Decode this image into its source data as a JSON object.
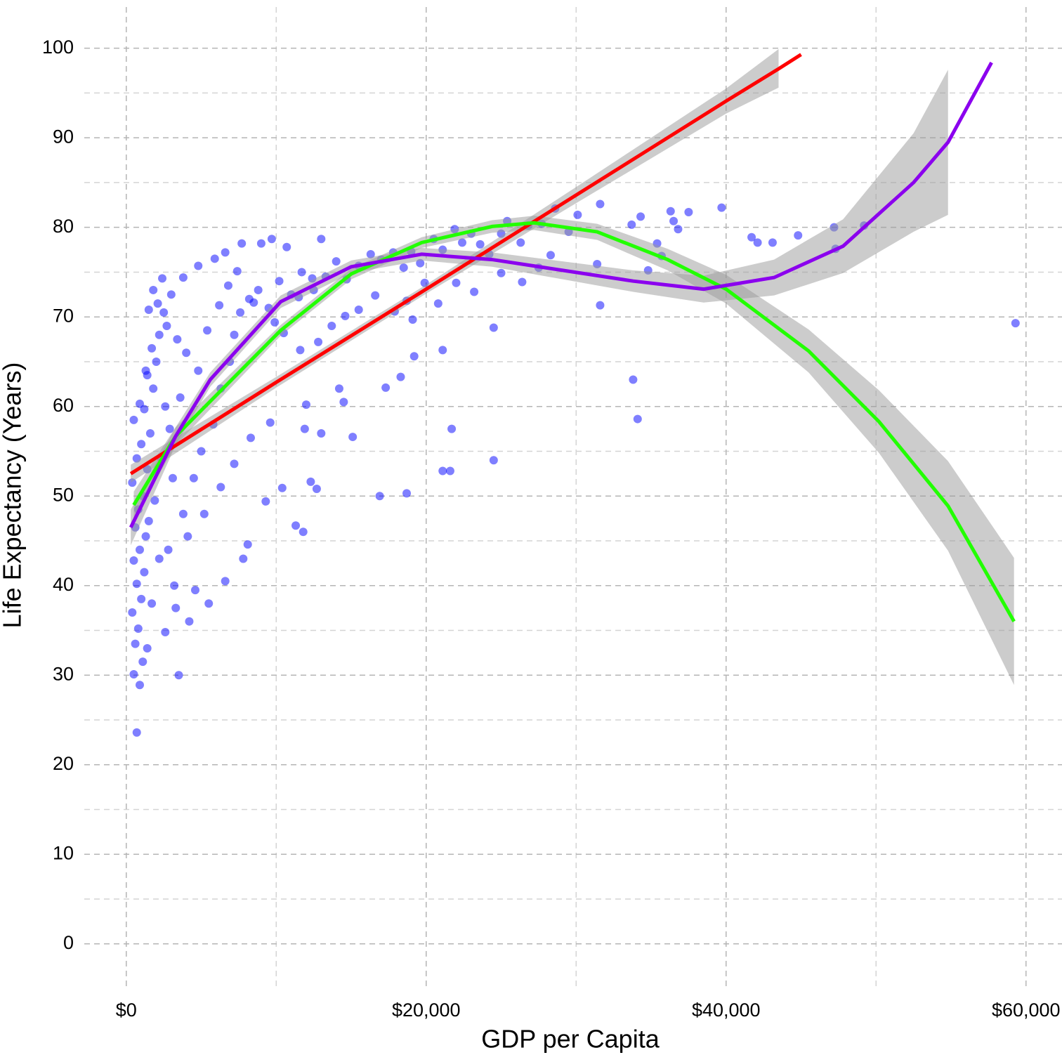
{
  "chart_data": {
    "type": "scatter",
    "x_label": "GDP per Capita",
    "y_label": "Life Expectancy (Years)",
    "xlim": [
      -2800,
      62400
    ],
    "ylim": [
      -4.8,
      104.6
    ],
    "xticks": [
      {
        "value": 0,
        "label": "$0"
      },
      {
        "value": 20000,
        "label": "$20,000"
      },
      {
        "value": 40000,
        "label": "$40,000"
      },
      {
        "value": 60000,
        "label": "$60,000"
      }
    ],
    "yticks": [
      0,
      10,
      20,
      30,
      40,
      50,
      60,
      70,
      80,
      90,
      100
    ],
    "x_minor_ticks": [
      10000,
      30000,
      50000
    ],
    "y_minor_ticks": [
      5,
      15,
      25,
      35,
      45,
      55,
      65,
      75,
      85,
      95
    ],
    "grid": true,
    "points": {
      "color": "#0000ff",
      "x": [
        700,
        900,
        500,
        1100,
        600,
        800,
        400,
        1000,
        700,
        1200,
        500,
        900,
        1300,
        600,
        1500,
        800,
        1100,
        400,
        1400,
        700,
        1000,
        1600,
        500,
        1200,
        900,
        1800,
        1400,
        2000,
        1700,
        2200,
        2500,
        3000,
        2800,
        3200,
        3500,
        2600,
        3300,
        4200,
        4600,
        6600,
        7800,
        8100,
        5500,
        3800,
        4500,
        5000,
        5800,
        6300,
        6900,
        7200,
        7600,
        8200,
        8800,
        9500,
        10200,
        11000,
        11700,
        12500,
        13300,
        9300,
        10400,
        11800,
        11300,
        12300,
        12700,
        11900,
        13000,
        12000,
        14200,
        14500,
        15100,
        16900,
        18700,
        18300,
        17300,
        19200,
        21100,
        21700,
        21100,
        21600,
        24500,
        24500,
        33800,
        34100,
        59300,
        49200,
        47200,
        47300,
        43100,
        44800,
        41700,
        42100,
        39700,
        37500,
        36300,
        36500,
        36800,
        35400,
        35700,
        34800,
        34300,
        33700,
        31600,
        30100,
        29500,
        28600,
        27700,
        26800,
        26300,
        25400,
        25000,
        24200,
        23600,
        23000,
        22400,
        21900,
        21100,
        20500,
        19600,
        19000,
        18500,
        17800,
        17000,
        16300,
        15500,
        14700,
        14000,
        13000,
        12400,
        11500,
        10700,
        9700,
        9000,
        7700,
        6600,
        5900,
        4800,
        3800,
        2400,
        1800,
        1500,
        2100,
        2700,
        3400,
        4000,
        4800,
        5400,
        6200,
        6800,
        7400,
        8500,
        9900,
        31600,
        31400,
        28300,
        27500,
        26400,
        25000,
        23200,
        22000,
        20800,
        19900,
        18700,
        17900,
        16600,
        15500,
        14600,
        13700,
        12800,
        11600,
        10500,
        3600,
        2900,
        2300,
        1900,
        3100,
        4100,
        5200,
        6300,
        7200,
        8300,
        9600,
        19100,
        2600,
        1300,
        1700,
        2200,
        1400
      ],
      "values": [
        23.6,
        28.9,
        30.1,
        31.5,
        33.5,
        35.2,
        37,
        38.5,
        40.2,
        41.5,
        42.8,
        44,
        45.5,
        46.5,
        47.2,
        48.5,
        50,
        51.5,
        53,
        54.2,
        55.8,
        57,
        58.5,
        59.7,
        60.3,
        62,
        63.5,
        65,
        66.5,
        68,
        70.5,
        72.5,
        44,
        40,
        30,
        34.8,
        37.5,
        36,
        39.5,
        40.5,
        43,
        44.6,
        38,
        48,
        52,
        55,
        58,
        62,
        65,
        68,
        70.5,
        72,
        73,
        71,
        74,
        72.5,
        75,
        73,
        74.5,
        49.4,
        50.9,
        46,
        46.7,
        51.6,
        50.8,
        57.5,
        57,
        60.2,
        62,
        60.5,
        56.6,
        50,
        50.3,
        63.3,
        62.1,
        65.6,
        66.3,
        57.5,
        52.8,
        52.8,
        54,
        68.8,
        63,
        58.6,
        69.3,
        80.2,
        80,
        77.6,
        78.3,
        79.1,
        78.9,
        78.3,
        82.2,
        81.7,
        81.8,
        80.7,
        79.8,
        78.2,
        76.8,
        75.2,
        81.2,
        80.3,
        82.6,
        81.4,
        79.5,
        82.1,
        80.4,
        80.2,
        78.3,
        80.7,
        79.3,
        77,
        78.1,
        79.3,
        78.3,
        79.8,
        77.5,
        78.7,
        76,
        77.3,
        75.5,
        77.2,
        76.4,
        77,
        75.7,
        74.2,
        76.2,
        78.7,
        74.3,
        72.2,
        77.8,
        78.7,
        78.2,
        78.2,
        77.2,
        76.5,
        75.7,
        74.4,
        74.3,
        73,
        70.8,
        71.5,
        69,
        67.5,
        66,
        64,
        68.5,
        71.3,
        73.5,
        75.1,
        71.6,
        69.4,
        71.3,
        75.9,
        76.9,
        75.5,
        73.9,
        74.9,
        72.8,
        73.8,
        71.5,
        73.8,
        71.8,
        70.6,
        72.4,
        70.8,
        70.1,
        69,
        67.2,
        66.3,
        68.2,
        61,
        57.5,
        54.3,
        49.5,
        52,
        45.5,
        48,
        51,
        53.6,
        56.5,
        58.2,
        69.7,
        60,
        64,
        38,
        43,
        33
      ]
    },
    "fits": [
      {
        "color": "#ff0000",
        "x": [
          300,
          10000,
          20000,
          30000,
          40000,
          43500,
          45000
        ],
        "values": [
          52.5,
          62.7,
          73.1,
          83.6,
          94.1,
          97.7,
          99.3
        ],
        "lower": [
          51.5,
          62.1,
          72.6,
          82.7,
          92.7,
          95.6,
          null
        ],
        "upper": [
          53.5,
          63.3,
          73.6,
          84.5,
          95.5,
          99.9,
          null
        ]
      },
      {
        "color": "#22ff00",
        "x": [
          500,
          3300,
          10300,
          15000,
          19700,
          24400,
          27200,
          31400,
          36100,
          40000,
          45500,
          50200,
          54800,
          59200
        ],
        "values": [
          49,
          56.7,
          68.5,
          74.8,
          78.3,
          80.1,
          80.5,
          79.5,
          76.4,
          73.1,
          66.2,
          58.3,
          48.9,
          36
        ],
        "lower": [
          47.5,
          55.7,
          67.9,
          74.2,
          77.7,
          79.4,
          79.7,
          78.6,
          75.2,
          71.5,
          63.8,
          54.8,
          43.9,
          28.9
        ],
        "upper": [
          50.5,
          57.7,
          69.1,
          75.4,
          78.9,
          80.8,
          81.3,
          80.4,
          77.6,
          74.7,
          68.6,
          61.8,
          53.9,
          43.1
        ]
      },
      {
        "color": "#8b00ee",
        "x": [
          300,
          3300,
          5600,
          10300,
          15000,
          19700,
          24400,
          29100,
          33800,
          38500,
          43200,
          47800,
          52500,
          54800,
          57700
        ],
        "values": [
          46.5,
          56.7,
          63,
          71.7,
          75.6,
          77,
          76.4,
          75.2,
          74,
          73.1,
          74.4,
          77.9,
          85,
          89.5,
          98.4
        ],
        "lower": [
          44.5,
          55.7,
          62.2,
          71,
          74.9,
          76.3,
          75.6,
          74.2,
          72.8,
          71.6,
          72.4,
          74.9,
          79.5,
          81.4,
          null
        ],
        "upper": [
          48.5,
          57.7,
          63.8,
          72.4,
          76.3,
          77.7,
          77.2,
          76.2,
          75.2,
          74.6,
          76.4,
          80.9,
          90.5,
          97.6,
          null
        ]
      }
    ]
  }
}
